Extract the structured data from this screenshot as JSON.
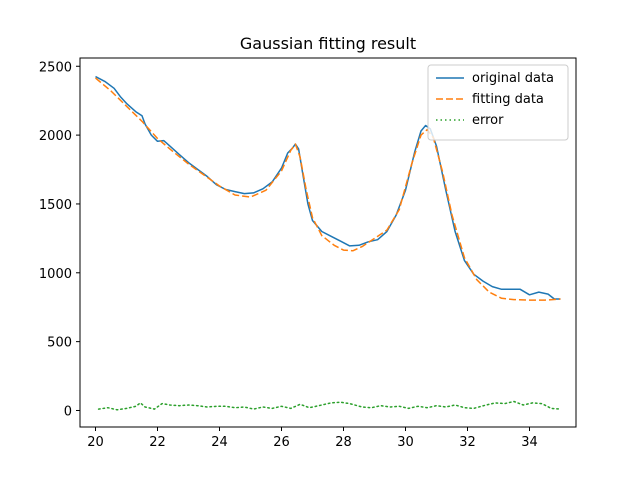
{
  "chart_data": {
    "type": "line",
    "title": "Gaussian fitting result",
    "xlabel": "",
    "ylabel": "",
    "xlim": [
      19.5,
      35.5
    ],
    "ylim": [
      -120,
      2560
    ],
    "x_ticks": [
      20,
      22,
      24,
      26,
      28,
      30,
      32,
      34
    ],
    "y_ticks": [
      0,
      500,
      1000,
      1500,
      2000,
      2500
    ],
    "grid": false,
    "legend_position": "top-right",
    "series": [
      {
        "name": "original data",
        "style": "solid",
        "color": "#1f77b4",
        "points": [
          [
            20.0,
            2425
          ],
          [
            20.3,
            2390
          ],
          [
            20.6,
            2340
          ],
          [
            20.8,
            2280
          ],
          [
            21.0,
            2230
          ],
          [
            21.3,
            2170
          ],
          [
            21.5,
            2140
          ],
          [
            21.6,
            2080
          ],
          [
            21.8,
            2000
          ],
          [
            22.0,
            1955
          ],
          [
            22.2,
            1960
          ],
          [
            22.4,
            1920
          ],
          [
            22.7,
            1860
          ],
          [
            23.0,
            1800
          ],
          [
            23.3,
            1750
          ],
          [
            23.6,
            1700
          ],
          [
            23.9,
            1640
          ],
          [
            24.2,
            1605
          ],
          [
            24.5,
            1590
          ],
          [
            24.8,
            1575
          ],
          [
            25.1,
            1580
          ],
          [
            25.4,
            1610
          ],
          [
            25.7,
            1660
          ],
          [
            26.0,
            1760
          ],
          [
            26.2,
            1870
          ],
          [
            26.35,
            1905
          ],
          [
            26.45,
            1935
          ],
          [
            26.55,
            1900
          ],
          [
            26.7,
            1700
          ],
          [
            26.85,
            1500
          ],
          [
            27.0,
            1380
          ],
          [
            27.3,
            1300
          ],
          [
            27.6,
            1265
          ],
          [
            27.9,
            1230
          ],
          [
            28.2,
            1195
          ],
          [
            28.5,
            1200
          ],
          [
            28.8,
            1225
          ],
          [
            29.1,
            1240
          ],
          [
            29.4,
            1300
          ],
          [
            29.7,
            1420
          ],
          [
            30.0,
            1600
          ],
          [
            30.3,
            1880
          ],
          [
            30.5,
            2030
          ],
          [
            30.65,
            2070
          ],
          [
            30.8,
            2045
          ],
          [
            31.0,
            1920
          ],
          [
            31.3,
            1600
          ],
          [
            31.6,
            1300
          ],
          [
            31.9,
            1090
          ],
          [
            32.2,
            990
          ],
          [
            32.5,
            940
          ],
          [
            32.8,
            900
          ],
          [
            33.1,
            880
          ],
          [
            33.4,
            880
          ],
          [
            33.7,
            880
          ],
          [
            34.0,
            840
          ],
          [
            34.3,
            860
          ],
          [
            34.6,
            845
          ],
          [
            34.8,
            810
          ],
          [
            35.0,
            810
          ]
        ]
      },
      {
        "name": "fitting data",
        "style": "dashed",
        "color": "#ff7f0e",
        "points": [
          [
            20.0,
            2415
          ],
          [
            20.5,
            2320
          ],
          [
            21.0,
            2210
          ],
          [
            21.5,
            2100
          ],
          [
            22.0,
            1975
          ],
          [
            22.5,
            1880
          ],
          [
            23.0,
            1790
          ],
          [
            23.5,
            1710
          ],
          [
            24.0,
            1630
          ],
          [
            24.5,
            1565
          ],
          [
            25.0,
            1550
          ],
          [
            25.5,
            1600
          ],
          [
            26.0,
            1740
          ],
          [
            26.3,
            1890
          ],
          [
            26.45,
            1935
          ],
          [
            26.6,
            1840
          ],
          [
            26.8,
            1600
          ],
          [
            27.0,
            1400
          ],
          [
            27.3,
            1270
          ],
          [
            27.7,
            1200
          ],
          [
            28.0,
            1165
          ],
          [
            28.3,
            1160
          ],
          [
            28.6,
            1190
          ],
          [
            29.0,
            1250
          ],
          [
            29.4,
            1310
          ],
          [
            29.8,
            1460
          ],
          [
            30.2,
            1790
          ],
          [
            30.5,
            2000
          ],
          [
            30.7,
            2040
          ],
          [
            30.9,
            1980
          ],
          [
            31.2,
            1730
          ],
          [
            31.5,
            1420
          ],
          [
            31.9,
            1110
          ],
          [
            32.3,
            950
          ],
          [
            32.7,
            860
          ],
          [
            33.1,
            815
          ],
          [
            33.5,
            805
          ],
          [
            34.0,
            802
          ],
          [
            34.5,
            802
          ],
          [
            35.0,
            810
          ]
        ]
      },
      {
        "name": "error",
        "style": "dotted",
        "color": "#2ca02c",
        "points": [
          [
            20.1,
            10
          ],
          [
            20.4,
            20
          ],
          [
            20.7,
            5
          ],
          [
            21.0,
            15
          ],
          [
            21.3,
            30
          ],
          [
            21.45,
            55
          ],
          [
            21.6,
            25
          ],
          [
            21.9,
            10
          ],
          [
            22.15,
            50
          ],
          [
            22.4,
            40
          ],
          [
            22.7,
            35
          ],
          [
            23.0,
            40
          ],
          [
            23.3,
            35
          ],
          [
            23.6,
            25
          ],
          [
            23.9,
            30
          ],
          [
            24.2,
            30
          ],
          [
            24.5,
            20
          ],
          [
            24.8,
            25
          ],
          [
            25.1,
            10
          ],
          [
            25.4,
            25
          ],
          [
            25.7,
            15
          ],
          [
            26.0,
            30
          ],
          [
            26.3,
            15
          ],
          [
            26.6,
            45
          ],
          [
            26.9,
            20
          ],
          [
            27.2,
            35
          ],
          [
            27.6,
            55
          ],
          [
            27.9,
            60
          ],
          [
            28.2,
            50
          ],
          [
            28.6,
            25
          ],
          [
            28.9,
            20
          ],
          [
            29.2,
            35
          ],
          [
            29.5,
            25
          ],
          [
            29.8,
            30
          ],
          [
            30.1,
            15
          ],
          [
            30.4,
            30
          ],
          [
            30.7,
            20
          ],
          [
            31.0,
            35
          ],
          [
            31.3,
            25
          ],
          [
            31.6,
            40
          ],
          [
            31.9,
            20
          ],
          [
            32.2,
            15
          ],
          [
            32.6,
            40
          ],
          [
            32.9,
            55
          ],
          [
            33.2,
            50
          ],
          [
            33.5,
            65
          ],
          [
            33.8,
            40
          ],
          [
            34.1,
            55
          ],
          [
            34.4,
            50
          ],
          [
            34.7,
            15
          ],
          [
            35.0,
            10
          ]
        ]
      }
    ]
  }
}
